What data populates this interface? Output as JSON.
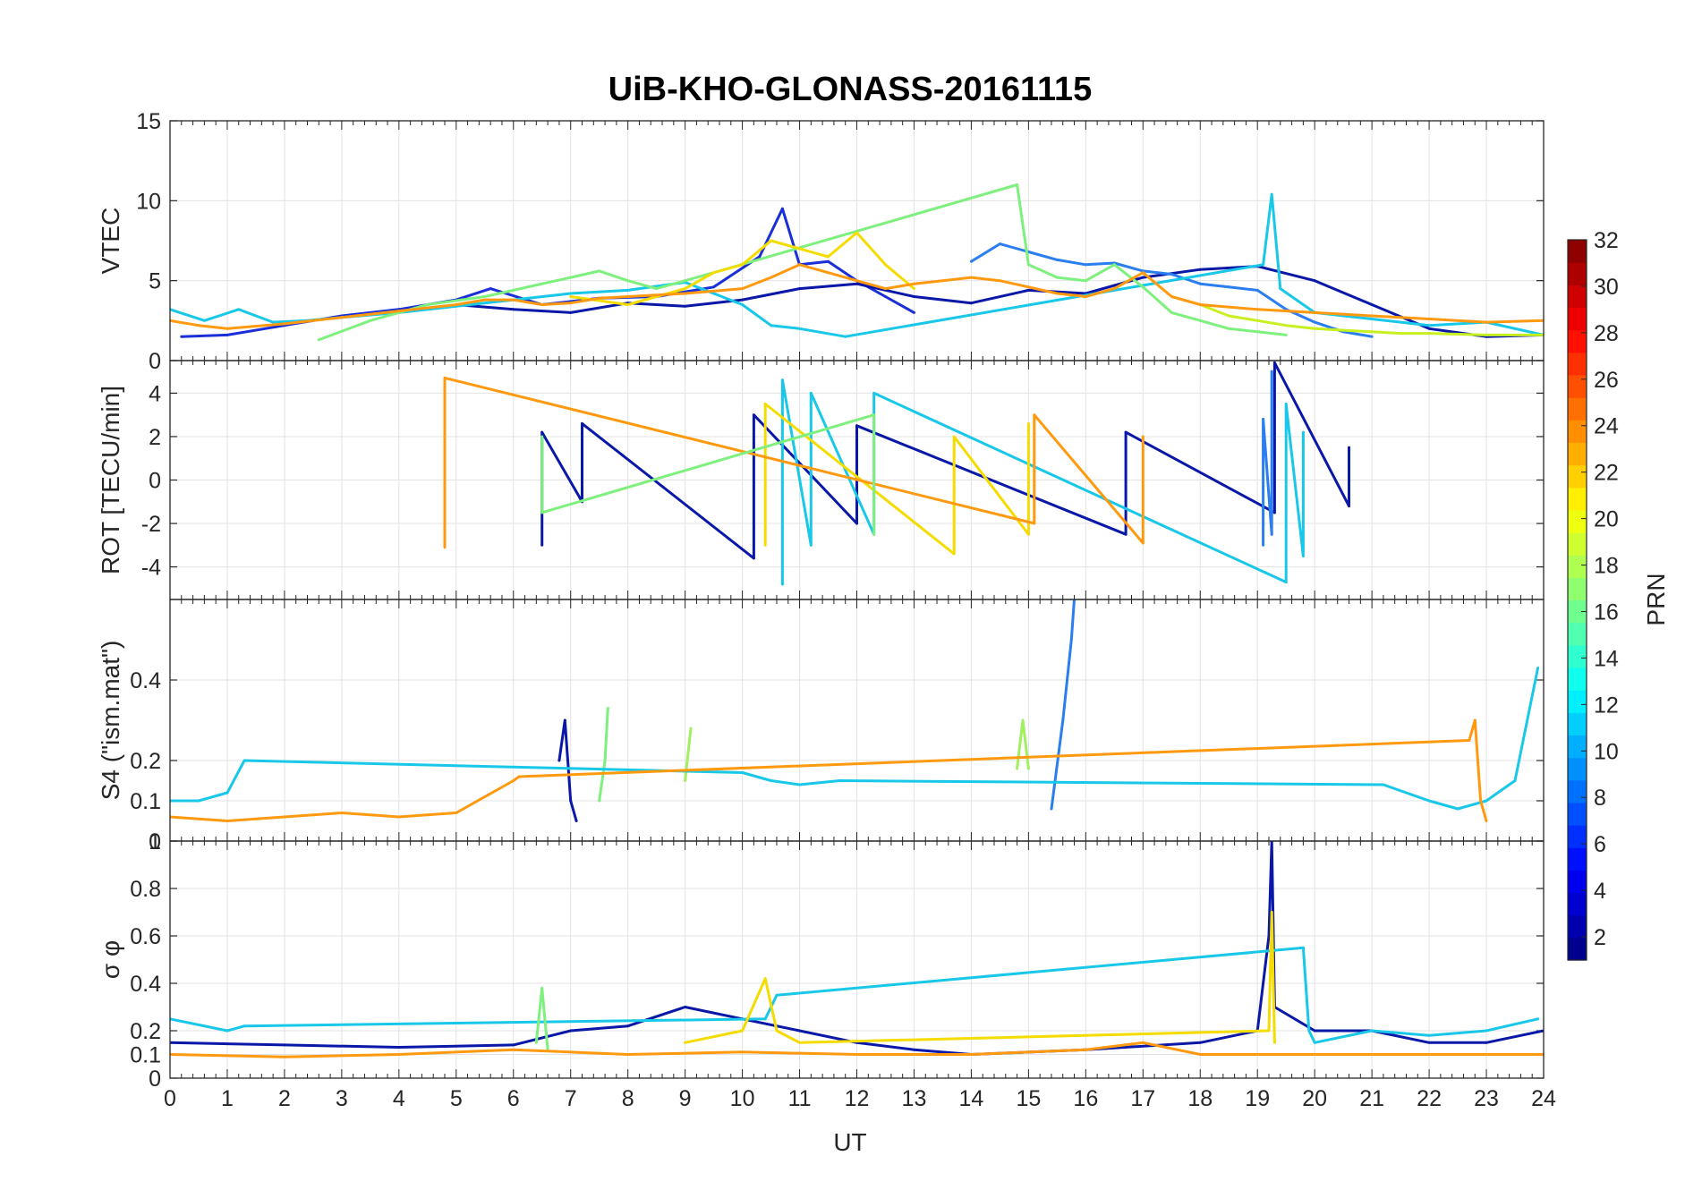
{
  "figure": {
    "title": "UiB-KHO-GLONASS-20161115",
    "xlabel": "UT"
  },
  "chart_data": [
    {
      "type": "line",
      "panel": "VTEC",
      "ylabel": "VTEC",
      "xlim": [
        0,
        24
      ],
      "ylim": [
        0,
        15
      ],
      "yticks": [
        "0",
        "5",
        "10",
        "15"
      ],
      "xticks": [
        "0",
        "1",
        "2",
        "3",
        "4",
        "5",
        "6",
        "7",
        "8",
        "9",
        "10",
        "11",
        "12",
        "13",
        "14",
        "15",
        "16",
        "17",
        "18",
        "19",
        "20",
        "21",
        "22",
        "23",
        "24"
      ],
      "grid": true,
      "series": [
        {
          "color": "#1a2fd8",
          "x": [
            0.2,
            1,
            2,
            3,
            4,
            5,
            5.6,
            6.5,
            7.5,
            8.5,
            9.5,
            10.3,
            10.7,
            11,
            11.5,
            12,
            12.5,
            13
          ],
          "y": [
            1.5,
            1.6,
            2.2,
            2.8,
            3.2,
            3.8,
            4.5,
            3.5,
            3.9,
            4.0,
            4.6,
            6.5,
            9.5,
            6,
            6.2,
            5,
            4,
            3
          ]
        },
        {
          "color": "#0a18a8",
          "x": [
            5,
            6,
            7,
            8,
            9,
            10,
            11,
            12,
            13,
            14,
            15,
            16,
            17,
            18,
            19,
            20,
            21,
            22,
            23,
            24
          ],
          "y": [
            3.5,
            3.2,
            3.0,
            3.6,
            3.4,
            3.8,
            4.5,
            4.8,
            4.0,
            3.6,
            4.4,
            4.2,
            5.2,
            5.7,
            5.9,
            5.0,
            3.5,
            2.0,
            1.5,
            1.6
          ]
        },
        {
          "color": "#2a7ef0",
          "x": [
            14,
            14.5,
            15,
            15.5,
            16,
            16.5,
            17,
            17.5,
            18,
            18.5,
            19,
            19.5,
            20,
            20.5,
            21
          ],
          "y": [
            6.2,
            7.3,
            6.8,
            6.3,
            6.0,
            6.1,
            5.6,
            5.4,
            4.8,
            4.6,
            4.4,
            3.2,
            2.4,
            1.8,
            1.5
          ]
        },
        {
          "color": "#19c8e8",
          "x": [
            0,
            0.6,
            1.2,
            1.8,
            2.4,
            3,
            4,
            5,
            6,
            7,
            8,
            9,
            10,
            10.5,
            11,
            11.8,
            19.1,
            19.25,
            19.4,
            20,
            21,
            22,
            23,
            24
          ],
          "y": [
            3.2,
            2.5,
            3.2,
            2.4,
            2.5,
            2.7,
            3.0,
            3.4,
            3.8,
            4.2,
            4.4,
            4.9,
            3.5,
            2.2,
            2.0,
            1.5,
            6.0,
            10.4,
            4.5,
            3.0,
            2.6,
            2.2,
            2.4,
            1.6
          ]
        },
        {
          "color": "#7ef07e",
          "x": [
            2.6,
            3.5,
            4.5,
            5.5,
            6,
            6.5,
            7,
            7.5,
            8,
            8.5,
            9,
            9.5,
            14.8,
            15,
            15.5,
            16,
            16.5,
            17,
            17.5,
            18,
            18.5,
            19,
            19.5
          ],
          "y": [
            1.3,
            2.5,
            3.5,
            4.0,
            4.4,
            4.8,
            5.2,
            5.6,
            5.0,
            4.5,
            5.0,
            5.5,
            11.0,
            6.0,
            5.2,
            5.0,
            6.0,
            4.6,
            3.0,
            2.5,
            2.0,
            1.8,
            1.6
          ]
        },
        {
          "color": "#f5dc00",
          "x": [
            7,
            8,
            9,
            9.5,
            10,
            10.5,
            11,
            11.5,
            12,
            12.5,
            13
          ],
          "y": [
            4.0,
            3.5,
            4.5,
            5.5,
            6.0,
            7.5,
            7.0,
            6.5,
            8.0,
            6.0,
            4.5
          ]
        },
        {
          "color": "#c8f020",
          "x": [
            18,
            18.5,
            19,
            19.5,
            20,
            20.5,
            21,
            21.5,
            22,
            23,
            24
          ],
          "y": [
            3.5,
            2.8,
            2.5,
            2.2,
            2.0,
            1.9,
            1.8,
            1.7,
            1.7,
            1.6,
            1.6
          ]
        },
        {
          "color": "#ff9a10",
          "x": [
            0,
            0.5,
            1,
            2,
            3,
            4,
            5,
            5.5,
            6,
            6.5,
            7,
            7.5,
            8,
            9,
            10,
            10.5,
            11,
            11.5,
            12,
            12.5,
            13,
            13.5,
            14,
            14.5,
            15,
            15.5,
            16,
            16.5,
            17,
            17.5,
            18,
            19,
            20,
            21,
            22,
            23,
            24
          ],
          "y": [
            2.5,
            2.2,
            2.0,
            2.3,
            2.7,
            3.1,
            3.5,
            3.8,
            3.8,
            3.5,
            3.6,
            3.9,
            4.0,
            4.2,
            4.5,
            5.2,
            6.0,
            5.5,
            5.0,
            4.5,
            4.8,
            5.0,
            5.2,
            5.0,
            4.6,
            4.2,
            4.0,
            4.5,
            5.5,
            4.0,
            3.5,
            3.2,
            3.0,
            2.8,
            2.6,
            2.4,
            2.5
          ]
        }
      ]
    },
    {
      "type": "line",
      "panel": "ROT",
      "ylabel": "ROT [TECU/min]",
      "xlim": [
        0,
        24
      ],
      "ylim": [
        -5.5,
        5.5
      ],
      "yticks": [
        "-4",
        "-2",
        "0",
        "2",
        "4"
      ],
      "grid": true,
      "series": [
        {
          "color": "#0a18a8",
          "x": [
            6.5,
            6.5,
            7.2,
            7.2,
            10.2,
            10.2,
            12,
            12,
            16.7,
            16.7,
            19.3,
            19.3,
            20.6,
            20.6
          ],
          "y": [
            -3,
            2.2,
            -1,
            2.6,
            -3.6,
            3,
            -2,
            2.5,
            -2.5,
            2.2,
            -1.5,
            5.4,
            -1.2,
            1.5
          ]
        },
        {
          "color": "#19c8e8",
          "x": [
            10.7,
            10.7,
            11.2,
            11.2,
            12.3,
            12.3,
            19.5,
            19.5,
            19.8,
            19.8
          ],
          "y": [
            -4.8,
            4.6,
            -3,
            4.0,
            -2.5,
            4.0,
            -4.7,
            3.5,
            -3.5,
            2.2
          ]
        },
        {
          "color": "#2a7ef0",
          "x": [
            19.1,
            19.1,
            19.25,
            19.25
          ],
          "y": [
            -3,
            2.8,
            -2.5,
            5.0
          ]
        },
        {
          "color": "#f5dc00",
          "x": [
            10.4,
            10.4,
            13.7,
            13.7,
            15,
            15
          ],
          "y": [
            -3,
            3.5,
            -3.4,
            2.0,
            -2.5,
            2.6
          ]
        },
        {
          "color": "#ff9a10",
          "x": [
            4.8,
            4.8,
            15.1,
            15.1,
            17,
            17
          ],
          "y": [
            -3.1,
            4.7,
            -2,
            3.0,
            -2.9,
            2.0
          ]
        },
        {
          "color": "#7ef07e",
          "x": [
            12.3,
            12.3,
            6.5,
            6.5
          ],
          "y": [
            -2.5,
            3.0,
            -1.5,
            2.0
          ]
        }
      ]
    },
    {
      "type": "line",
      "panel": "S4",
      "ylabel": "S4 (\"ism.mat\")",
      "xlim": [
        0,
        24
      ],
      "ylim": [
        0,
        0.6
      ],
      "yticks": [
        "0",
        "0.1",
        "0.2",
        "0.4"
      ],
      "grid": true,
      "series": [
        {
          "color": "#0a18a8",
          "x": [
            6.8,
            6.9,
            7.0,
            7.1
          ],
          "y": [
            0.2,
            0.3,
            0.1,
            0.05
          ]
        },
        {
          "color": "#2a7ef0",
          "x": [
            15.4,
            15.6,
            15.75,
            15.8
          ],
          "y": [
            0.08,
            0.3,
            0.5,
            0.6
          ]
        },
        {
          "color": "#7ef07e",
          "x": [
            7.5,
            7.6,
            7.65
          ],
          "y": [
            0.1,
            0.2,
            0.33
          ]
        },
        {
          "color": "#a0f060",
          "x": [
            9.0,
            9.1
          ],
          "y": [
            0.15,
            0.28
          ]
        },
        {
          "color": "#a0f060",
          "x": [
            14.8,
            14.9,
            15.0
          ],
          "y": [
            0.18,
            0.3,
            0.18
          ]
        },
        {
          "color": "#19c8e8",
          "x": [
            0,
            0.5,
            1.0,
            1.3,
            10,
            10.5,
            11,
            11.7,
            21.2,
            22,
            22.5,
            23,
            23.5,
            23.9
          ],
          "y": [
            0.1,
            0.1,
            0.12,
            0.2,
            0.17,
            0.15,
            0.14,
            0.15,
            0.14,
            0.1,
            0.08,
            0.1,
            0.15,
            0.43
          ]
        },
        {
          "color": "#ff9a10",
          "x": [
            0,
            1,
            2,
            3,
            4,
            5,
            6,
            6.1,
            22.7,
            22.8,
            22.9,
            23.0
          ],
          "y": [
            0.06,
            0.05,
            0.06,
            0.07,
            0.06,
            0.07,
            0.15,
            0.16,
            0.25,
            0.3,
            0.1,
            0.05
          ]
        }
      ]
    },
    {
      "type": "line",
      "panel": "sigma_phi",
      "ylabel": "σ φ",
      "xlim": [
        0,
        24
      ],
      "ylim": [
        0,
        1
      ],
      "yticks": [
        "0",
        "0.1",
        "0.2",
        "0.4",
        "0.6",
        "0.8",
        "1"
      ],
      "grid": true,
      "series": [
        {
          "color": "#0a18a8",
          "x": [
            0,
            2,
            4,
            6,
            7,
            8,
            9,
            10,
            11,
            12,
            13,
            14,
            16,
            18,
            19,
            19.2,
            19.25,
            19.3,
            20,
            21,
            22,
            23,
            24
          ],
          "y": [
            0.15,
            0.14,
            0.13,
            0.14,
            0.2,
            0.22,
            0.3,
            0.25,
            0.2,
            0.15,
            0.12,
            0.1,
            0.12,
            0.15,
            0.2,
            0.6,
            1.0,
            0.3,
            0.2,
            0.2,
            0.15,
            0.15,
            0.2
          ]
        },
        {
          "color": "#19c8e8",
          "x": [
            0,
            1,
            1.3,
            10.4,
            10.6,
            19.8,
            19.9,
            20,
            21,
            22,
            23,
            23.9
          ],
          "y": [
            0.25,
            0.2,
            0.22,
            0.25,
            0.35,
            0.55,
            0.2,
            0.15,
            0.2,
            0.18,
            0.2,
            0.25
          ]
        },
        {
          "color": "#f5dc00",
          "x": [
            9,
            10,
            10.4,
            10.6,
            11,
            19.2,
            19.25,
            19.3
          ],
          "y": [
            0.15,
            0.2,
            0.42,
            0.2,
            0.15,
            0.2,
            0.7,
            0.15
          ]
        },
        {
          "color": "#7ef07e",
          "x": [
            6.4,
            6.5,
            6.6
          ],
          "y": [
            0.15,
            0.38,
            0.12
          ]
        },
        {
          "color": "#ff9a10",
          "x": [
            0,
            2,
            4,
            6,
            8,
            10,
            12,
            14,
            16,
            17,
            18,
            20,
            22,
            24
          ],
          "y": [
            0.1,
            0.09,
            0.1,
            0.12,
            0.1,
            0.11,
            0.1,
            0.1,
            0.12,
            0.15,
            0.1,
            0.1,
            0.1,
            0.1
          ]
        }
      ]
    }
  ],
  "colorbar": {
    "label": "PRN",
    "range": [
      1,
      32
    ],
    "ticks": [
      "2",
      "4",
      "6",
      "8",
      "10",
      "12",
      "14",
      "16",
      "18",
      "20",
      "22",
      "24",
      "26",
      "28",
      "30",
      "32"
    ],
    "colormap": "jet"
  }
}
